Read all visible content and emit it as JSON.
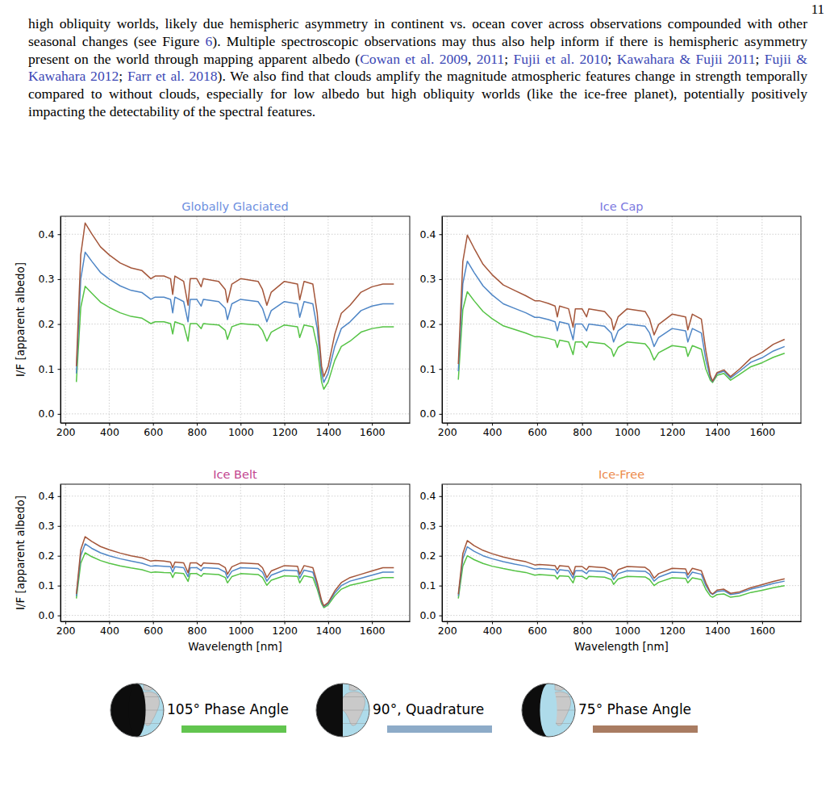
{
  "page_number": "11",
  "paragraph": [
    {
      "text": "high obliquity worlds, likely due hemispheric asymmetry in continent vs. ocean cover across observations compounded with other seasonal changes (see Figure ",
      "link": false
    },
    {
      "text": "6",
      "link": true
    },
    {
      "text": "). Multiple spectroscopic observations may thus also help inform if there is hemispheric asymmetry present on the world through mapping apparent albedo (",
      "link": false
    },
    {
      "text": "Cowan et al. 2009",
      "link": true
    },
    {
      "text": ", ",
      "link": false
    },
    {
      "text": "2011",
      "link": true
    },
    {
      "text": "; ",
      "link": false
    },
    {
      "text": "Fujii et al. 2010",
      "link": true
    },
    {
      "text": "; ",
      "link": false
    },
    {
      "text": "Kawahara & Fujii 2011",
      "link": true
    },
    {
      "text": "; ",
      "link": false
    },
    {
      "text": "Fujii & Kawahara 2012",
      "link": true
    },
    {
      "text": "; ",
      "link": false
    },
    {
      "text": "Farr et al. 2018",
      "link": true
    },
    {
      "text": "). We also find that clouds amplify the magnitude atmospheric features change in strength temporally compared to without clouds, especially for low albedo but high obliquity worlds (like the ice-free planet), potentially positively impacting the detectability of the spectral features.",
      "link": false
    }
  ],
  "chart_data": [
    {
      "type": "line",
      "title": "Globally Glaciated",
      "ylabel": "I/F [apparent albedo]",
      "grid": true,
      "x": [
        250,
        270,
        290,
        320,
        360,
        400,
        450,
        500,
        550,
        590,
        610,
        650,
        680,
        690,
        700,
        740,
        760,
        770,
        800,
        820,
        830,
        900,
        930,
        940,
        960,
        1000,
        1080,
        1100,
        1120,
        1140,
        1200,
        1260,
        1270,
        1290,
        1330,
        1350,
        1370,
        1380,
        1400,
        1430,
        1460,
        1500,
        1550,
        1600,
        1650,
        1700
      ],
      "series": [
        {
          "color": "#55c345",
          "values": [
            0.071,
            0.237,
            0.284,
            0.269,
            0.249,
            0.237,
            0.225,
            0.217,
            0.213,
            0.201,
            0.205,
            0.205,
            0.201,
            0.178,
            0.205,
            0.198,
            0.162,
            0.201,
            0.201,
            0.19,
            0.201,
            0.198,
            0.186,
            0.166,
            0.194,
            0.201,
            0.198,
            0.186,
            0.162,
            0.182,
            0.198,
            0.194,
            0.17,
            0.198,
            0.194,
            0.15,
            0.071,
            0.055,
            0.071,
            0.119,
            0.15,
            0.162,
            0.182,
            0.19,
            0.194,
            0.194
          ]
        },
        {
          "color": "#4f86c6",
          "values": [
            0.09,
            0.3,
            0.36,
            0.34,
            0.315,
            0.3,
            0.285,
            0.275,
            0.27,
            0.255,
            0.26,
            0.26,
            0.255,
            0.225,
            0.26,
            0.25,
            0.205,
            0.255,
            0.255,
            0.24,
            0.255,
            0.25,
            0.235,
            0.21,
            0.245,
            0.255,
            0.25,
            0.235,
            0.205,
            0.23,
            0.25,
            0.245,
            0.215,
            0.25,
            0.245,
            0.19,
            0.09,
            0.07,
            0.09,
            0.15,
            0.19,
            0.205,
            0.23,
            0.24,
            0.245,
            0.245
          ]
        },
        {
          "color": "#a4563a",
          "values": [
            0.106,
            0.354,
            0.425,
            0.401,
            0.372,
            0.354,
            0.336,
            0.325,
            0.319,
            0.301,
            0.307,
            0.307,
            0.301,
            0.266,
            0.307,
            0.295,
            0.242,
            0.301,
            0.301,
            0.283,
            0.301,
            0.295,
            0.277,
            0.248,
            0.289,
            0.301,
            0.295,
            0.277,
            0.242,
            0.271,
            0.295,
            0.289,
            0.254,
            0.295,
            0.289,
            0.224,
            0.106,
            0.083,
            0.106,
            0.177,
            0.224,
            0.242,
            0.271,
            0.283,
            0.289,
            0.289
          ]
        }
      ],
      "xlim": [
        177.5,
        1772.5
      ],
      "ylim": [
        -0.02,
        0.44
      ],
      "xticks": [
        200,
        400,
        600,
        800,
        1000,
        1200,
        1400,
        1600
      ],
      "yticks": [
        {
          "value": 0,
          "label": "0.0"
        },
        0.1,
        0.2,
        0.3,
        0.4
      ]
    },
    {
      "type": "line",
      "title": "Ice Cap",
      "grid": true,
      "x": [
        250,
        270,
        290,
        320,
        360,
        400,
        450,
        500,
        550,
        590,
        610,
        650,
        680,
        690,
        700,
        740,
        760,
        770,
        800,
        820,
        830,
        900,
        930,
        940,
        960,
        1000,
        1080,
        1100,
        1120,
        1140,
        1200,
        1260,
        1270,
        1290,
        1330,
        1350,
        1370,
        1380,
        1400,
        1430,
        1460,
        1500,
        1550,
        1600,
        1650,
        1700
      ],
      "series": [
        {
          "color": "#55c345",
          "values": [
            0.076,
            0.232,
            0.272,
            0.252,
            0.228,
            0.212,
            0.196,
            0.188,
            0.18,
            0.172,
            0.172,
            0.168,
            0.164,
            0.148,
            0.164,
            0.16,
            0.132,
            0.16,
            0.16,
            0.148,
            0.16,
            0.156,
            0.144,
            0.128,
            0.148,
            0.16,
            0.156,
            0.144,
            0.12,
            0.136,
            0.152,
            0.148,
            0.128,
            0.152,
            0.144,
            0.1,
            0.075,
            0.07,
            0.086,
            0.09,
            0.075,
            0.088,
            0.105,
            0.114,
            0.126,
            0.135
          ]
        },
        {
          "color": "#4f86c6",
          "values": [
            0.095,
            0.29,
            0.34,
            0.315,
            0.285,
            0.265,
            0.245,
            0.235,
            0.225,
            0.215,
            0.215,
            0.21,
            0.205,
            0.185,
            0.205,
            0.2,
            0.165,
            0.2,
            0.2,
            0.185,
            0.2,
            0.195,
            0.18,
            0.16,
            0.185,
            0.2,
            0.195,
            0.18,
            0.15,
            0.17,
            0.19,
            0.185,
            0.16,
            0.19,
            0.18,
            0.12,
            0.08,
            0.072,
            0.09,
            0.095,
            0.08,
            0.095,
            0.115,
            0.125,
            0.14,
            0.15
          ]
        },
        {
          "color": "#a4563a",
          "values": [
            0.111,
            0.339,
            0.398,
            0.369,
            0.333,
            0.31,
            0.287,
            0.275,
            0.263,
            0.252,
            0.252,
            0.246,
            0.24,
            0.216,
            0.24,
            0.234,
            0.193,
            0.234,
            0.234,
            0.216,
            0.234,
            0.228,
            0.211,
            0.187,
            0.216,
            0.234,
            0.228,
            0.211,
            0.176,
            0.199,
            0.222,
            0.216,
            0.187,
            0.222,
            0.211,
            0.14,
            0.085,
            0.073,
            0.092,
            0.098,
            0.083,
            0.1,
            0.124,
            0.137,
            0.155,
            0.166
          ]
        }
      ],
      "xlim": [
        177.5,
        1772.5
      ],
      "ylim": [
        -0.02,
        0.44
      ],
      "xticks": [
        200,
        400,
        600,
        800,
        1000,
        1200,
        1400,
        1600
      ],
      "yticks": [
        {
          "value": 0,
          "label": "0.0"
        },
        0.1,
        0.2,
        0.3,
        0.4
      ]
    },
    {
      "type": "line",
      "title": "Ice Belt",
      "xlabel": "Wavelength [nm]",
      "ylabel": "I/F [apparent albedo]",
      "grid": true,
      "x": [
        250,
        270,
        290,
        320,
        360,
        400,
        450,
        500,
        550,
        590,
        610,
        650,
        680,
        690,
        700,
        740,
        760,
        770,
        800,
        820,
        830,
        900,
        930,
        940,
        960,
        1000,
        1080,
        1100,
        1120,
        1140,
        1200,
        1260,
        1270,
        1290,
        1330,
        1350,
        1370,
        1380,
        1400,
        1430,
        1460,
        1500,
        1550,
        1600,
        1650,
        1700
      ],
      "series": [
        {
          "color": "#55c345",
          "values": [
            0.057,
            0.175,
            0.21,
            0.197,
            0.184,
            0.175,
            0.166,
            0.159,
            0.153,
            0.144,
            0.146,
            0.144,
            0.143,
            0.127,
            0.143,
            0.14,
            0.114,
            0.14,
            0.14,
            0.131,
            0.14,
            0.137,
            0.127,
            0.109,
            0.13,
            0.14,
            0.137,
            0.127,
            0.101,
            0.118,
            0.133,
            0.131,
            0.109,
            0.133,
            0.127,
            0.088,
            0.039,
            0.026,
            0.035,
            0.066,
            0.088,
            0.101,
            0.109,
            0.118,
            0.127,
            0.127
          ]
        },
        {
          "color": "#4f86c6",
          "values": [
            0.065,
            0.2,
            0.24,
            0.225,
            0.21,
            0.2,
            0.19,
            0.182,
            0.175,
            0.165,
            0.167,
            0.165,
            0.163,
            0.145,
            0.163,
            0.16,
            0.13,
            0.16,
            0.16,
            0.15,
            0.16,
            0.157,
            0.145,
            0.125,
            0.148,
            0.16,
            0.157,
            0.145,
            0.115,
            0.135,
            0.152,
            0.15,
            0.125,
            0.152,
            0.145,
            0.1,
            0.045,
            0.03,
            0.04,
            0.075,
            0.1,
            0.115,
            0.125,
            0.135,
            0.145,
            0.145
          ]
        },
        {
          "color": "#a4563a",
          "values": [
            0.072,
            0.22,
            0.264,
            0.248,
            0.231,
            0.22,
            0.209,
            0.2,
            0.193,
            0.182,
            0.184,
            0.182,
            0.179,
            0.16,
            0.179,
            0.176,
            0.143,
            0.176,
            0.176,
            0.165,
            0.176,
            0.173,
            0.16,
            0.138,
            0.163,
            0.176,
            0.173,
            0.16,
            0.127,
            0.149,
            0.167,
            0.165,
            0.138,
            0.167,
            0.16,
            0.11,
            0.05,
            0.032,
            0.043,
            0.082,
            0.11,
            0.127,
            0.138,
            0.149,
            0.16,
            0.16
          ]
        }
      ],
      "xlim": [
        177.5,
        1772.5
      ],
      "ylim": [
        -0.02,
        0.44
      ],
      "xticks": [
        200,
        400,
        600,
        800,
        1000,
        1200,
        1400,
        1600
      ],
      "yticks": [
        {
          "value": 0,
          "label": "0.0"
        },
        0.1,
        0.2,
        0.3,
        0.4
      ]
    },
    {
      "type": "line",
      "title": "Ice-Free",
      "xlabel": "Wavelength [nm]",
      "grid": true,
      "x": [
        250,
        270,
        290,
        320,
        360,
        400,
        450,
        500,
        550,
        590,
        610,
        650,
        680,
        690,
        700,
        740,
        760,
        770,
        800,
        820,
        830,
        900,
        930,
        940,
        960,
        1000,
        1080,
        1100,
        1120,
        1140,
        1200,
        1260,
        1270,
        1290,
        1330,
        1350,
        1370,
        1380,
        1400,
        1430,
        1460,
        1500,
        1550,
        1600,
        1650,
        1700
      ],
      "series": [
        {
          "color": "#55c345",
          "values": [
            0.057,
            0.165,
            0.2,
            0.187,
            0.174,
            0.165,
            0.157,
            0.15,
            0.144,
            0.135,
            0.137,
            0.135,
            0.133,
            0.122,
            0.133,
            0.131,
            0.109,
            0.131,
            0.131,
            0.122,
            0.131,
            0.128,
            0.12,
            0.104,
            0.122,
            0.131,
            0.129,
            0.12,
            0.1,
            0.111,
            0.126,
            0.124,
            0.109,
            0.126,
            0.12,
            0.087,
            0.065,
            0.061,
            0.07,
            0.072,
            0.061,
            0.065,
            0.077,
            0.084,
            0.093,
            0.1
          ]
        },
        {
          "color": "#4f86c6",
          "values": [
            0.065,
            0.19,
            0.23,
            0.215,
            0.2,
            0.19,
            0.18,
            0.172,
            0.165,
            0.155,
            0.157,
            0.155,
            0.153,
            0.14,
            0.153,
            0.15,
            0.125,
            0.15,
            0.15,
            0.14,
            0.15,
            0.147,
            0.138,
            0.12,
            0.14,
            0.15,
            0.148,
            0.138,
            0.115,
            0.128,
            0.145,
            0.143,
            0.125,
            0.145,
            0.138,
            0.1,
            0.075,
            0.07,
            0.08,
            0.083,
            0.07,
            0.075,
            0.088,
            0.097,
            0.107,
            0.115
          ]
        },
        {
          "color": "#a4563a",
          "values": [
            0.071,
            0.207,
            0.251,
            0.234,
            0.218,
            0.207,
            0.196,
            0.187,
            0.18,
            0.169,
            0.171,
            0.169,
            0.167,
            0.153,
            0.167,
            0.164,
            0.136,
            0.164,
            0.164,
            0.153,
            0.164,
            0.16,
            0.15,
            0.131,
            0.153,
            0.164,
            0.161,
            0.15,
            0.125,
            0.14,
            0.158,
            0.156,
            0.136,
            0.158,
            0.15,
            0.109,
            0.078,
            0.072,
            0.085,
            0.088,
            0.074,
            0.079,
            0.093,
            0.103,
            0.114,
            0.123
          ]
        }
      ],
      "xlim": [
        177.5,
        1772.5
      ],
      "ylim": [
        -0.02,
        0.44
      ],
      "xticks": [
        200,
        400,
        600,
        800,
        1000,
        1200,
        1400,
        1600
      ],
      "yticks": [
        {
          "value": 0,
          "label": "0.0"
        },
        0.1,
        0.2,
        0.3,
        0.4
      ]
    }
  ],
  "figure_legend": [
    {
      "label": "105° Phase Angle",
      "color": "#62c54f"
    },
    {
      "label": "90°, Quadrature",
      "color": "#8dabc8"
    },
    {
      "label": "75° Phase Angle",
      "color": "#a97c62"
    }
  ]
}
